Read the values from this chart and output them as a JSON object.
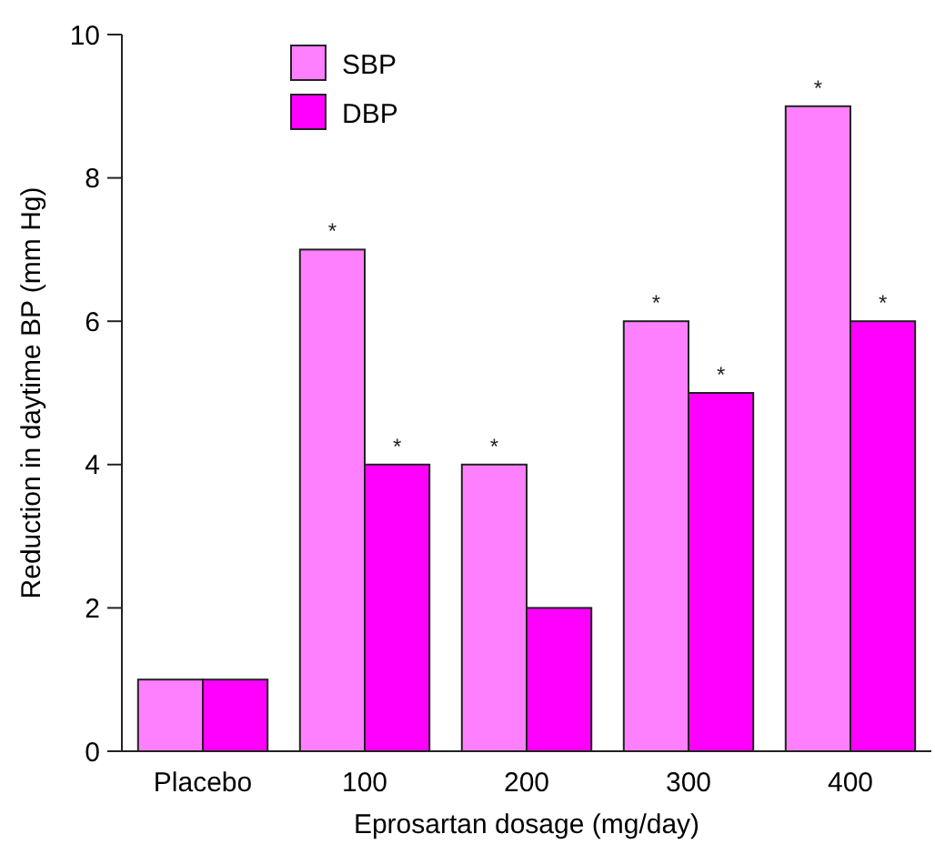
{
  "chart_data": {
    "type": "bar",
    "xlabel": "Eprosartan dosage (mg/day)",
    "ylabel": "Reduction in daytime BP (mm Hg)",
    "categories": [
      "Placebo",
      "100",
      "200",
      "300",
      "400"
    ],
    "series": [
      {
        "name": "SBP",
        "color": "#ff80ff",
        "values": [
          1,
          7,
          4,
          6,
          9
        ]
      },
      {
        "name": "DBP",
        "color": "#ff00ff",
        "values": [
          1,
          4,
          2,
          5,
          6
        ]
      }
    ],
    "ylim": [
      0,
      10
    ],
    "yticks": [
      0,
      2,
      4,
      6,
      8,
      10
    ],
    "grid": false,
    "legend": "top left",
    "annotations": [
      {
        "text": "*",
        "x": "100",
        "y": 7
      },
      {
        "text": "*",
        "x": "100",
        "y": 4
      },
      {
        "text": "*",
        "x": "200",
        "y": 4
      },
      {
        "text": "*",
        "x": "300",
        "y": 6
      },
      {
        "text": "*",
        "x": "300",
        "y": 5
      },
      {
        "text": "*",
        "x": "400",
        "y": 9
      },
      {
        "text": "*",
        "x": "400",
        "y": 6
      }
    ]
  }
}
